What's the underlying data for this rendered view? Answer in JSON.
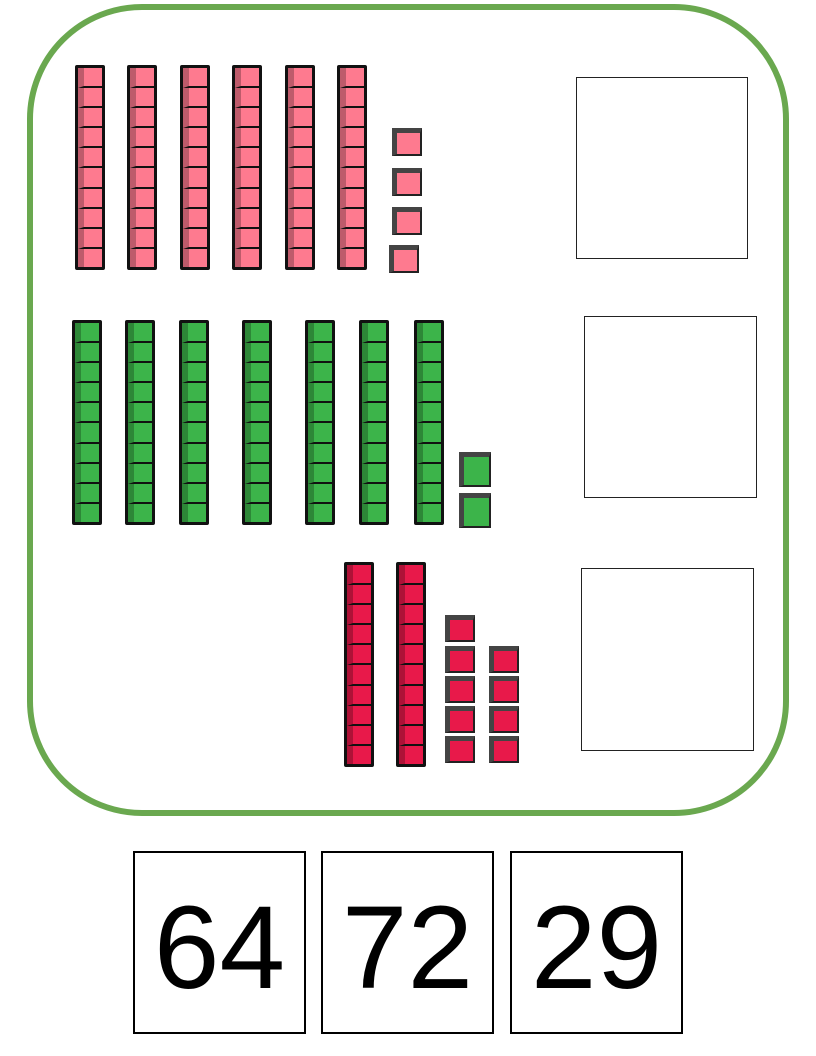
{
  "groups": [
    {
      "tens": 6,
      "ones": 4,
      "color": "#fe7a8f"
    },
    {
      "tens": 7,
      "ones": 2,
      "color": "#3cb44a"
    },
    {
      "tens": 2,
      "ones": 9,
      "color": "#e8194a"
    }
  ],
  "frame_color": "#6aa84f",
  "choices": [
    "64",
    "72",
    "29"
  ]
}
